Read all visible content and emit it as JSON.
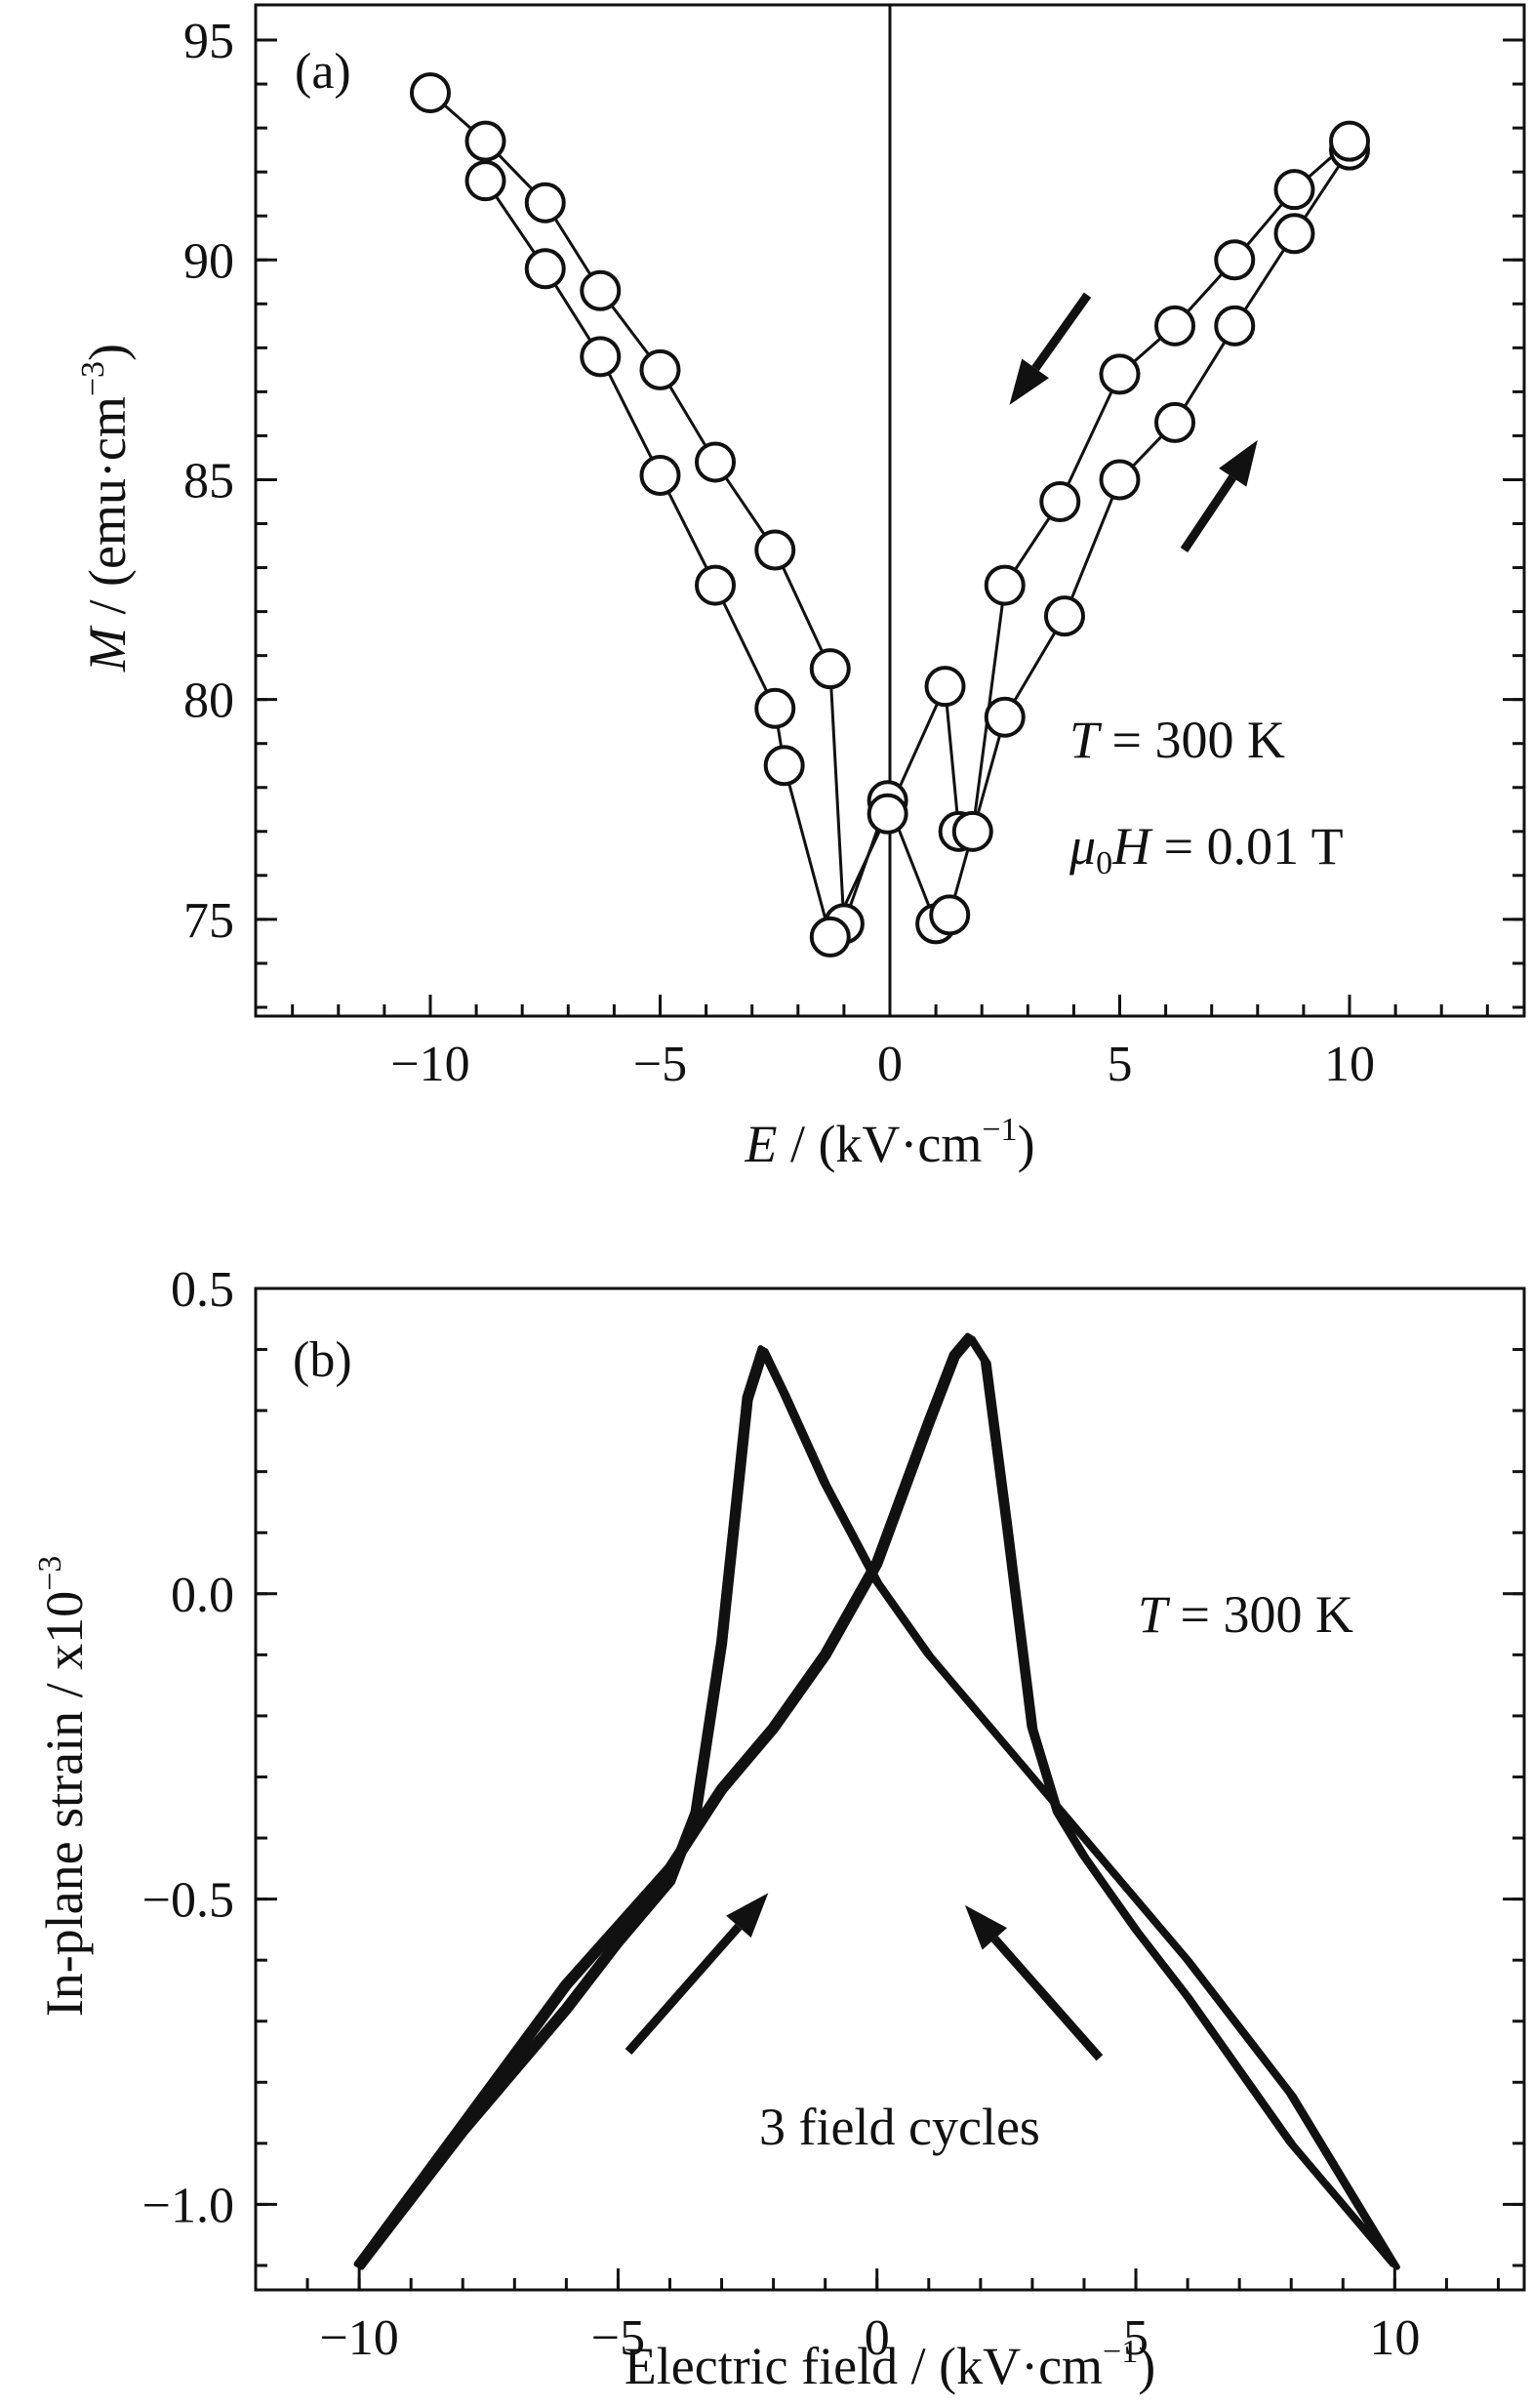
{
  "chart_data": [
    {
      "type": "scatter",
      "panel_label": "(a)",
      "xlabel": "E / (kV·cm⁻¹)",
      "ylabel": "M / (emu·cm⁻³)",
      "xlim": [
        -13.8,
        13.8
      ],
      "ylim": [
        72.8,
        95.8
      ],
      "x_ticks": [
        "−10",
        "−5",
        "0",
        "5",
        "10"
      ],
      "x_tick_values": [
        -10,
        -5,
        0,
        5,
        10
      ],
      "y_ticks": [
        "95",
        "90",
        "85",
        "80",
        "75"
      ],
      "y_tick_values": [
        95,
        90,
        85,
        80,
        75
      ],
      "grid": false,
      "marker": "open-circle",
      "series": [
        {
          "x": [
            -10,
            -8.8,
            -7.5,
            -6.3,
            -5,
            -3.8,
            -2.5,
            -1.3,
            -1.0,
            -0.05,
            1.0,
            1.3,
            2.5,
            3.8,
            5,
            6.2,
            7.5,
            8.8,
            10
          ],
          "y": [
            93.8,
            92.7,
            91.3,
            89.3,
            87.5,
            85.4,
            83.4,
            80.7,
            74.9,
            77.7,
            74.9,
            75.1,
            79.6,
            81.9,
            85.0,
            86.3,
            88.5,
            90.6,
            92.5
          ]
        },
        {
          "x": [
            -8.8,
            -7.5,
            -6.3,
            -5,
            -3.8,
            -2.5,
            -2.3,
            -1.3,
            -0.05,
            1.2,
            1.5,
            1.8,
            2.5,
            3.7,
            5,
            6.2,
            7.5,
            8.8,
            10
          ],
          "y": [
            91.8,
            89.8,
            87.8,
            85.1,
            82.6,
            79.8,
            78.5,
            74.6,
            77.4,
            80.3,
            77.0,
            77.0,
            82.6,
            84.5,
            87.4,
            88.5,
            90.0,
            91.6,
            92.7
          ]
        }
      ],
      "annotations": [
        {
          "text": "T = 300 K",
          "x": 8.6,
          "y": 78.5
        },
        {
          "text": "μ0H = 0.01 T",
          "x": 8.6,
          "y": 75.5
        }
      ],
      "arrows": [
        {
          "from": [
            4.3,
            89.2
          ],
          "to": [
            2.6,
            86.7
          ]
        },
        {
          "from": [
            6.4,
            83.4
          ],
          "to": [
            8.0,
            85.9
          ]
        }
      ]
    },
    {
      "type": "line",
      "panel_label": "(b)",
      "xlabel": "Electric field / (kV·cm⁻¹)",
      "ylabel": "In-plane strain / x10⁻³",
      "xlim": [
        -12,
        12.5
      ],
      "ylim": [
        -1.14,
        0.5
      ],
      "x_ticks": [
        "−10",
        "−5",
        "0",
        "5",
        "10"
      ],
      "x_tick_values": [
        -10,
        -5,
        0,
        5,
        10
      ],
      "y_ticks": [
        "0.5",
        "0.0",
        "−0.5",
        "−1.0"
      ],
      "y_tick_values": [
        0.5,
        0.0,
        -0.5,
        -1.0
      ],
      "grid": false,
      "curve_increasing_field": {
        "x": [
          -10,
          -8,
          -6,
          -5,
          -4,
          -3.5,
          -3.0,
          -2.5,
          -2.2,
          -1.8,
          -1.0,
          0,
          1.0,
          2.0,
          4.0,
          6.0,
          8.0,
          10
        ],
        "y": [
          -1.1,
          -0.88,
          -0.68,
          -0.57,
          -0.47,
          -0.36,
          -0.08,
          0.32,
          0.4,
          0.33,
          0.18,
          0.02,
          -0.1,
          -0.2,
          -0.4,
          -0.6,
          -0.82,
          -1.1
        ]
      },
      "curve_decreasing_field": {
        "x": [
          10,
          8,
          6,
          5,
          4,
          3.5,
          3.0,
          2.5,
          2.1,
          1.8,
          1.5,
          1.0,
          0,
          -1.0,
          -2.0,
          -3.0,
          -4.0,
          -6.0,
          -8.0,
          -10
        ],
        "y": [
          -1.1,
          -0.9,
          -0.66,
          -0.55,
          -0.43,
          -0.36,
          -0.22,
          0.12,
          0.38,
          0.42,
          0.39,
          0.28,
          0.05,
          -0.1,
          -0.22,
          -0.32,
          -0.45,
          -0.64,
          -0.87,
          -1.1
        ]
      },
      "annotations": [
        {
          "text": "T = 300 K",
          "x": 8.0,
          "y": 0.0
        },
        {
          "text": "3 field cycles",
          "x": 0.4,
          "y": -0.92
        }
      ],
      "arrows": [
        {
          "from": [
            -4.8,
            -0.75
          ],
          "to": [
            -2.1,
            -0.49
          ]
        },
        {
          "from": [
            4.3,
            -0.76
          ],
          "to": [
            1.7,
            -0.51
          ]
        }
      ]
    }
  ]
}
